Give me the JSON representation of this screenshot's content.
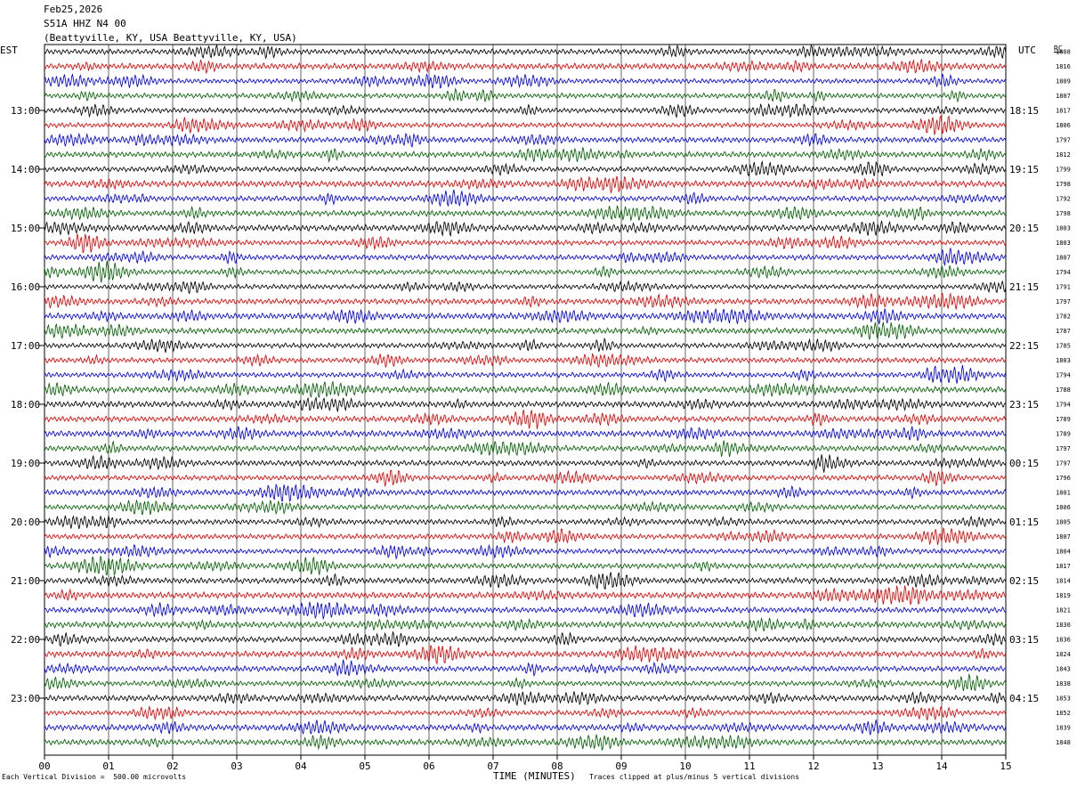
{
  "header": {
    "date": "Feb25,2026",
    "station": "S51A HHZ N4 00",
    "location": "(Beattyville, KY, USA Beattyville, KY, USA)"
  },
  "left_axis_label": "EST",
  "right_axis_label": "UTC",
  "rms_column_label": "RC",
  "footer": {
    "scale_note": "Each Vertical Division =  500.00 microvolts",
    "xlabel": "TIME (MINUTES)",
    "clip_note": "Traces clipped at plus/minus 5 vertical divisions"
  },
  "colors": {
    "cycle": [
      "#000000",
      "#e00000",
      "#0000e0",
      "#006000"
    ],
    "grid": "#000000"
  },
  "chart_data": {
    "type": "line",
    "title": "S51A HHZ N4 00",
    "xlabel": "TIME (MINUTES)",
    "xlim": [
      0,
      15
    ],
    "x_ticks": [
      "00",
      "01",
      "02",
      "03",
      "04",
      "05",
      "06",
      "07",
      "08",
      "09",
      "10",
      "11",
      "12",
      "13",
      "14",
      "15"
    ],
    "grid": "vertical lines each minute",
    "row_count": 48,
    "rows_per_hour": 4,
    "local_hour_labels": [
      "13:00",
      "14:00",
      "15:00",
      "16:00",
      "17:00",
      "18:00",
      "19:00",
      "20:00",
      "21:00",
      "22:00",
      "23:00"
    ],
    "utc_labels": [
      "18:15",
      "19:15",
      "20:15",
      "21:15",
      "22:15",
      "23:15",
      "00:15",
      "01:15",
      "02:15",
      "03:15",
      "04:15"
    ],
    "hour_label_first_row": 4,
    "row_values": [
      1808,
      1816,
      1809,
      1807,
      1817,
      1806,
      1797,
      1812,
      1799,
      1798,
      1792,
      1798,
      1803,
      1803,
      1807,
      1794,
      1791,
      1797,
      1782,
      1787,
      1785,
      1803,
      1794,
      1788,
      1794,
      1789,
      1789,
      1797,
      1797,
      1796,
      1801,
      1806,
      1805,
      1807,
      1804,
      1817,
      1814,
      1819,
      1821,
      1830,
      1836,
      1824,
      1843,
      1838,
      1853,
      1852,
      1839,
      1848
    ]
  }
}
